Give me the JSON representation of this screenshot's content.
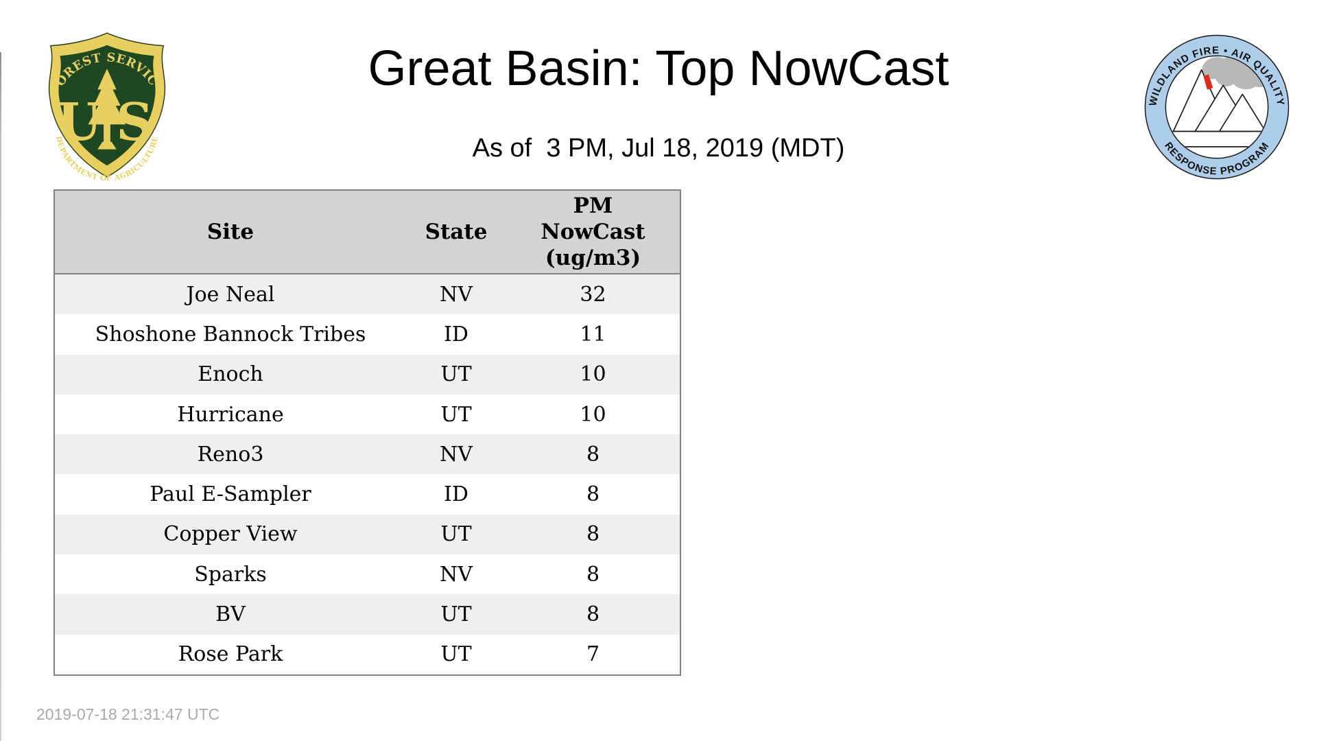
{
  "page": {
    "title": "Great Basin: Top NowCast",
    "subtitle": "As of  3 PM, Jul 18, 2019 (MDT)",
    "footer_timestamp": "2019-07-18 21:31:47 UTC"
  },
  "logos": {
    "forest_service": {
      "arc_top": "FOREST SERVICE",
      "letter_u": "U",
      "letter_s": "S",
      "arc_bottom": "DEPARTMENT OF AGRICULTURE"
    },
    "air_quality": {
      "arc_top": "WILDLAND FIRE • AIR QUALITY",
      "arc_bottom": "RESPONSE PROGRAM"
    }
  },
  "table": {
    "columns": [
      {
        "label": "Site"
      },
      {
        "label": "State"
      },
      {
        "label": "PM NowCast (ug/m3)",
        "lines": [
          "PM",
          "NowCast",
          "(ug/m3)"
        ]
      }
    ],
    "rows": [
      {
        "site": "Joe Neal",
        "state": "NV",
        "value": "32"
      },
      {
        "site": "Shoshone Bannock Tribes",
        "state": "ID",
        "value": "11"
      },
      {
        "site": "Enoch",
        "state": "UT",
        "value": "10"
      },
      {
        "site": "Hurricane",
        "state": "UT",
        "value": "10"
      },
      {
        "site": "Reno3",
        "state": "NV",
        "value": "8"
      },
      {
        "site": "Paul E-Sampler",
        "state": "ID",
        "value": "8"
      },
      {
        "site": "Copper View",
        "state": "UT",
        "value": "8"
      },
      {
        "site": "Sparks",
        "state": "NV",
        "value": "8"
      },
      {
        "site": "BV",
        "state": "UT",
        "value": "8"
      },
      {
        "site": "Rose Park",
        "state": "UT",
        "value": "7"
      }
    ]
  },
  "chart_data": {
    "type": "table",
    "title": "Great Basin: Top NowCast",
    "subtitle": "As of  3 PM, Jul 18, 2019 (MDT)",
    "columns": [
      "Site",
      "State",
      "PM NowCast (ug/m3)"
    ],
    "rows": [
      [
        "Joe Neal",
        "NV",
        32
      ],
      [
        "Shoshone Bannock Tribes",
        "ID",
        11
      ],
      [
        "Enoch",
        "UT",
        10
      ],
      [
        "Hurricane",
        "UT",
        10
      ],
      [
        "Reno3",
        "NV",
        8
      ],
      [
        "Paul E-Sampler",
        "ID",
        8
      ],
      [
        "Copper View",
        "UT",
        8
      ],
      [
        "Sparks",
        "NV",
        8
      ],
      [
        "BV",
        "UT",
        8
      ],
      [
        "Rose Park",
        "UT",
        7
      ]
    ]
  },
  "theme": {
    "header_bg": "#d3d3d3",
    "stripe_bg": "#efefef",
    "table_border": "#808080",
    "footer_gray": "#a9a9a9",
    "shield_green": "#1f4722",
    "shield_yellow": "#e8d060",
    "ring_blue": "#aecdea",
    "smoke_gray": "#b8b8b8",
    "flame_red": "#dd2c1e"
  }
}
